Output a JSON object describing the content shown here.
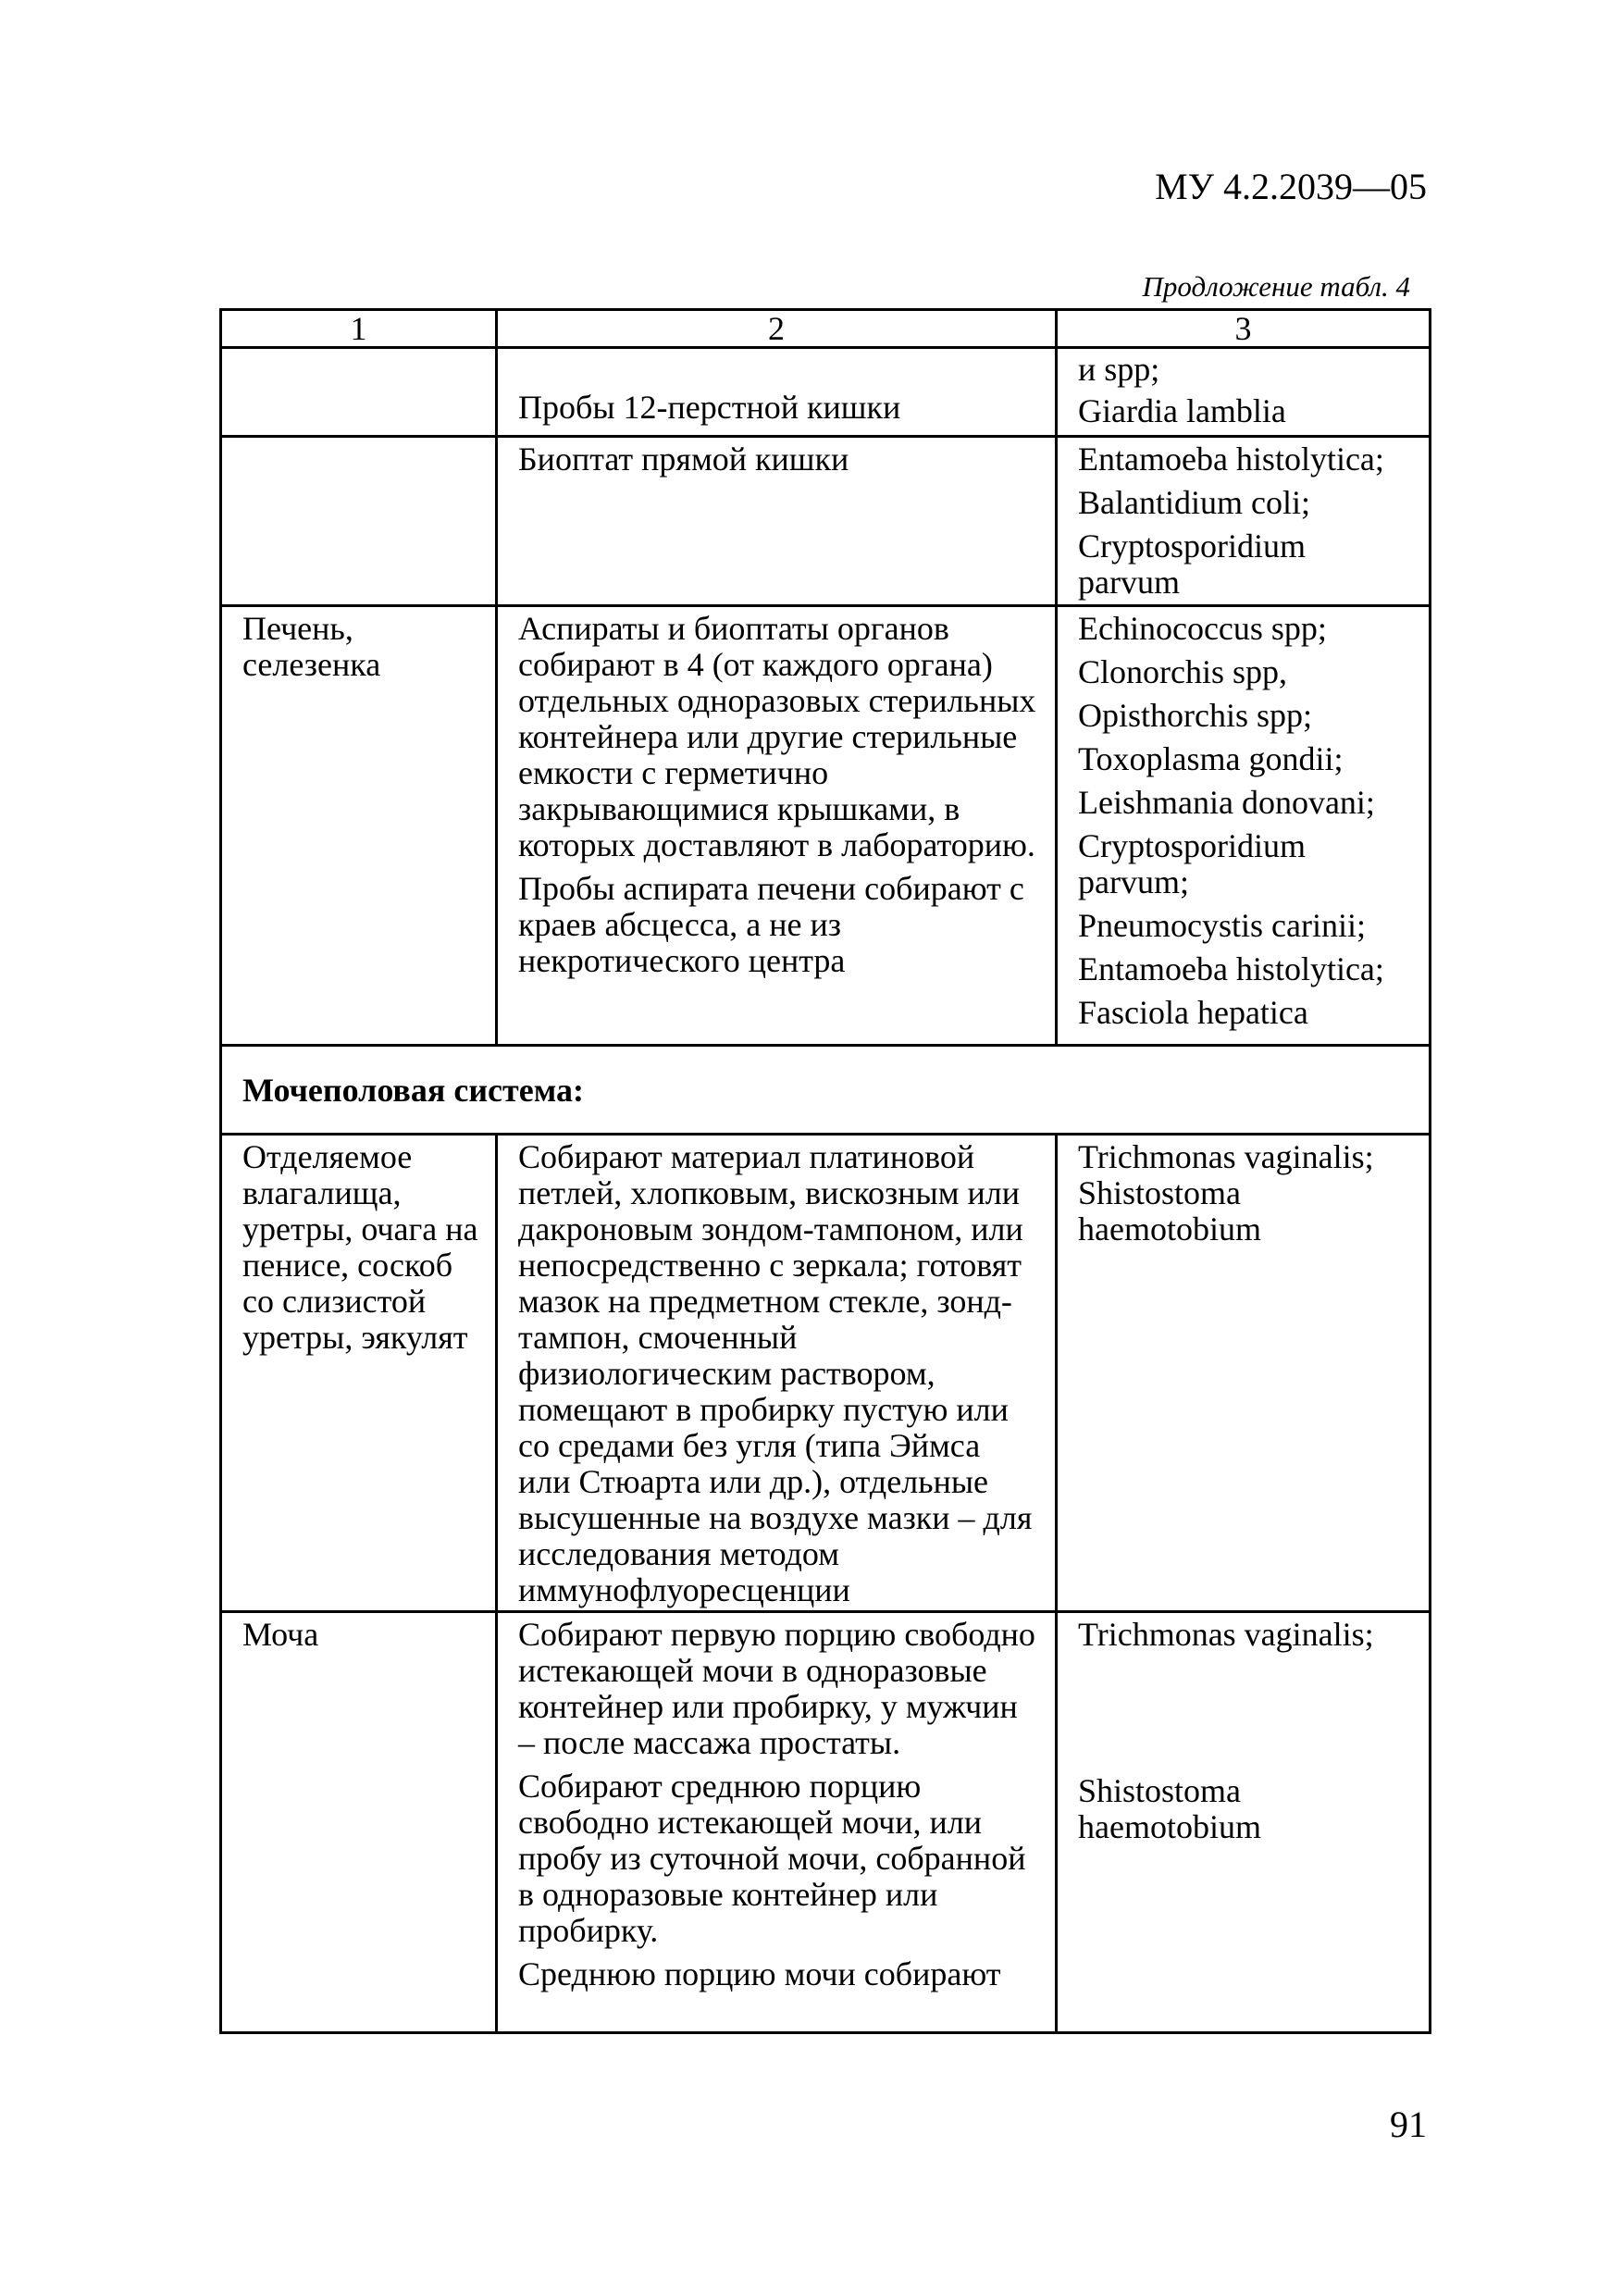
{
  "header": {
    "doc_code": "МУ 4.2.2039—05",
    "continuation": "Продложение табл. 4"
  },
  "table": {
    "columns": [
      "1",
      "2",
      "3"
    ],
    "rows": [
      {
        "c1": [],
        "c2": [
          "Пробы 12-перстной кишки"
        ],
        "c3": [
          "и spp;",
          "Giardia lambliа"
        ]
      },
      {
        "c1": [],
        "c2": [
          "Биоптат прямой кишки"
        ],
        "c3": [
          "Entamoeba histolytica;",
          "Balantidium coli;",
          "Cryptosporidium parvum"
        ]
      },
      {
        "c1": [
          "Печень, селезенка"
        ],
        "c2": [
          "Аспираты  и биоптаты  органов собирают в 4 (от каждого органа) отдельных одноразовых стерильных контейнера  или другие стерильные емкости с герметично закрывающимися крышками, в которых доставляют в лабораторию.",
          "Пробы аспирата печени собирают с краев абсцесса, а не из некротического центра"
        ],
        "c3": [
          "Echinococcus spp;",
          "Clonorchis spp,",
          "Opisthorchis spp;",
          "Toxoplasma gondii;",
          "Leishmania donovani;",
          "Cryptosporidium parvum;",
          "Pneumocystis carinii;",
          "Entamoeba histolytica;",
          "Fasciola hepatica"
        ]
      },
      {
        "section": "Мочеполовая система:"
      },
      {
        "c1": [
          "Отделяемое влагалища, уретры, очага на пенисе, соскоб со слизистой уретры, эякулят"
        ],
        "c2": [
          "Собирают материал платиновой петлей, хлопковым, вискозным или дакроновым зондом-тампоном, или непосредственно с зеркала; готовят мазок на предметном стекле, зонд-тампон, смоченный физиологическим раствором, помещают в пробирку пустую или со средами без угля (типа Эймса или Стюарта или др.), отдельные высушенные на воздухе мазки – для исследования методом иммунофлуоресценции"
        ],
        "c3": [
          "Trichmonas vaginalis; Shistostoma haemotobium"
        ]
      },
      {
        "c1": [
          "Моча"
        ],
        "c2": [
          "Собирают первую порцию свободно истекающей мочи в одноразовые контейнер или пробирку, у мужчин – после массажа простаты.",
          "Собирают среднюю порцию свободно истекающей мочи, или пробу из суточной мочи, собранной в одноразовые контейнер или пробирку.",
          "Среднюю порцию мочи собирают"
        ],
        "c3": [
          "Trichmonas vaginalis;",
          "Shistostoma haemotobium"
        ]
      }
    ]
  },
  "footer": {
    "page_number": "91"
  }
}
